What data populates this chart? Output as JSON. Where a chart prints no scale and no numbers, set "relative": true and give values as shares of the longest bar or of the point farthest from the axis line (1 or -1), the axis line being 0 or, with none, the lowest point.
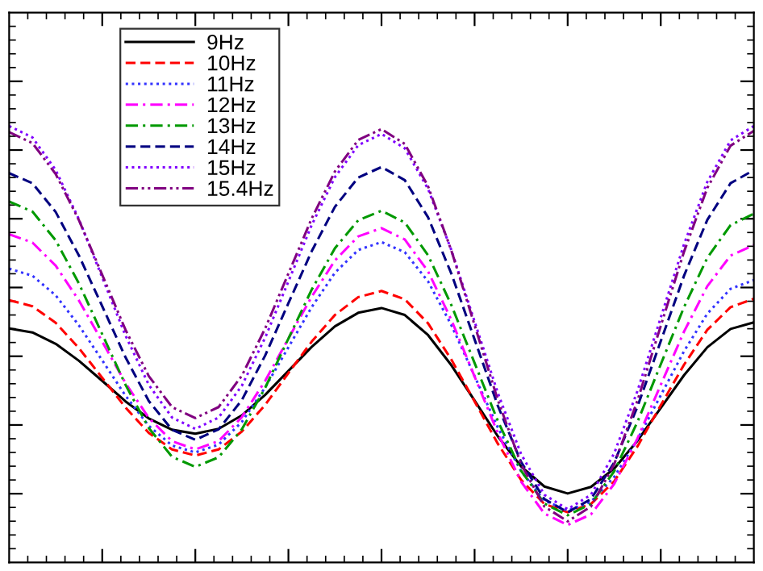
{
  "chart_data": {
    "type": "line",
    "relative": true,
    "tick_labels": false,
    "grid": false,
    "legend": "top left",
    "marker": "none",
    "categories": [
      null,
      null,
      null,
      null,
      null,
      null,
      null,
      null,
      null,
      null,
      null,
      null,
      null,
      null,
      null,
      null,
      null,
      null,
      null,
      null,
      null,
      null,
      null,
      null,
      null,
      null,
      null,
      null,
      null,
      null,
      null,
      null,
      null
    ],
    "series": [
      {
        "name": "9Hz",
        "color": "#000000",
        "line_style": "solid",
        "values": [
          0.536,
          0.527,
          0.501,
          0.462,
          0.416,
          0.369,
          0.33,
          0.304,
          0.295,
          0.306,
          0.337,
          0.384,
          0.439,
          0.494,
          0.541,
          0.572,
          0.583,
          0.567,
          0.521,
          0.452,
          0.371,
          0.289,
          0.22,
          0.174,
          0.158,
          0.173,
          0.215,
          0.279,
          0.354,
          0.429,
          0.493,
          0.535,
          0.55
        ]
      },
      {
        "name": "10Hz",
        "color": "#ff0000",
        "line_style": "dashed",
        "values": [
          0.601,
          0.587,
          0.549,
          0.491,
          0.423,
          0.355,
          0.297,
          0.259,
          0.245,
          0.259,
          0.3,
          0.361,
          0.434,
          0.506,
          0.567,
          0.608,
          0.622,
          0.603,
          0.548,
          0.465,
          0.369,
          0.272,
          0.189,
          0.134,
          0.115,
          0.134,
          0.186,
          0.266,
          0.36,
          0.453,
          0.533,
          0.585,
          0.604
        ]
      },
      {
        "name": "11Hz",
        "color": "#3333ff",
        "line_style": "dotted",
        "values": [
          0.673,
          0.657,
          0.612,
          0.543,
          0.463,
          0.382,
          0.313,
          0.268,
          0.252,
          0.27,
          0.322,
          0.401,
          0.493,
          0.585,
          0.664,
          0.716,
          0.734,
          0.711,
          0.644,
          0.544,
          0.427,
          0.309,
          0.209,
          0.142,
          0.119,
          0.139,
          0.196,
          0.282,
          0.383,
          0.484,
          0.57,
          0.627,
          0.647
        ]
      },
      {
        "name": "12Hz",
        "color": "#ff00ff",
        "line_style": "dashdot",
        "values": [
          0.752,
          0.733,
          0.68,
          0.6,
          0.506,
          0.411,
          0.331,
          0.278,
          0.259,
          0.278,
          0.333,
          0.416,
          0.513,
          0.609,
          0.692,
          0.747,
          0.766,
          0.74,
          0.667,
          0.556,
          0.426,
          0.296,
          0.185,
          0.112,
          0.086,
          0.11,
          0.18,
          0.284,
          0.407,
          0.529,
          0.633,
          0.703,
          0.727
        ]
      },
      {
        "name": "13Hz",
        "color": "#009900",
        "line_style": "dashdot",
        "values": [
          0.827,
          0.804,
          0.738,
          0.639,
          0.523,
          0.407,
          0.308,
          0.242,
          0.219,
          0.241,
          0.305,
          0.4,
          0.513,
          0.625,
          0.72,
          0.784,
          0.806,
          0.779,
          0.704,
          0.59,
          0.457,
          0.324,
          0.21,
          0.135,
          0.108,
          0.134,
          0.209,
          0.322,
          0.454,
          0.585,
          0.698,
          0.773,
          0.799
        ]
      },
      {
        "name": "14Hz",
        "color": "#000080",
        "line_style": "dashed",
        "values": [
          0.892,
          0.869,
          0.803,
          0.703,
          0.587,
          0.47,
          0.37,
          0.304,
          0.281,
          0.305,
          0.372,
          0.474,
          0.594,
          0.713,
          0.815,
          0.882,
          0.906,
          0.876,
          0.791,
          0.662,
          0.511,
          0.359,
          0.23,
          0.145,
          0.115,
          0.145,
          0.229,
          0.357,
          0.507,
          0.657,
          0.785,
          0.869,
          0.899
        ]
      },
      {
        "name": "15Hz",
        "color": "#8000ff",
        "line_style": "dotted",
        "values": [
          1.0,
          0.974,
          0.899,
          0.786,
          0.653,
          0.52,
          0.407,
          0.332,
          0.306,
          0.332,
          0.405,
          0.515,
          0.644,
          0.773,
          0.883,
          0.956,
          0.982,
          0.949,
          0.856,
          0.716,
          0.552,
          0.388,
          0.248,
          0.155,
          0.122,
          0.155,
          0.25,
          0.393,
          0.561,
          0.729,
          0.872,
          0.967,
          1.0
        ]
      },
      {
        "name": "15.4Hz",
        "color": "#800080",
        "line_style": "dashdotdot",
        "values": [
          0.986,
          0.961,
          0.89,
          0.784,
          0.659,
          0.533,
          0.427,
          0.356,
          0.331,
          0.356,
          0.428,
          0.536,
          0.662,
          0.788,
          0.896,
          0.968,
          0.993,
          0.959,
          0.862,
          0.715,
          0.544,
          0.372,
          0.225,
          0.128,
          0.094,
          0.128,
          0.225,
          0.371,
          0.542,
          0.712,
          0.858,
          0.955,
          0.989
        ]
      }
    ]
  }
}
